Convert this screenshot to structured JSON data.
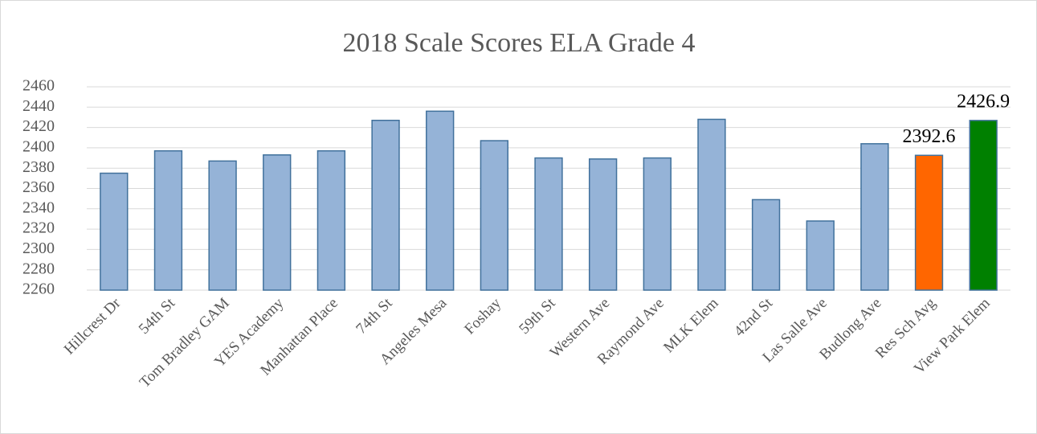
{
  "chart_data": {
    "type": "bar",
    "title": "2018 Scale Scores ELA Grade 4",
    "categories": [
      "Hillcrest Dr",
      "54th St",
      "Tom Bradley GAM",
      "YES Academy",
      "Manhattan Place",
      "74th St",
      "Angeles Mesa",
      "Foshay",
      "59th St",
      "Western Ave",
      "Raymond Ave",
      "MLK Elem",
      "42nd St",
      "Las Salle Ave",
      "Budlong Ave",
      "Res Sch Avg",
      "View Park Elem"
    ],
    "values": [
      2375,
      2397,
      2387,
      2393,
      2397,
      2427,
      2436,
      2407,
      2390,
      2389,
      2390,
      2428,
      2349,
      2328,
      2404,
      2392.6,
      2426.9
    ],
    "value_labels": [
      null,
      null,
      null,
      null,
      null,
      null,
      null,
      null,
      null,
      null,
      null,
      null,
      null,
      null,
      null,
      "2392.6",
      "2426.9"
    ],
    "colors": [
      "#95b3d7",
      "#95b3d7",
      "#95b3d7",
      "#95b3d7",
      "#95b3d7",
      "#95b3d7",
      "#95b3d7",
      "#95b3d7",
      "#95b3d7",
      "#95b3d7",
      "#95b3d7",
      "#95b3d7",
      "#95b3d7",
      "#95b3d7",
      "#95b3d7",
      "#ff6600",
      "#008000"
    ],
    "ylim": [
      2260,
      2460
    ],
    "yticks": [
      2260,
      2280,
      2300,
      2320,
      2340,
      2360,
      2380,
      2400,
      2420,
      2440,
      2460
    ],
    "grid": true
  }
}
